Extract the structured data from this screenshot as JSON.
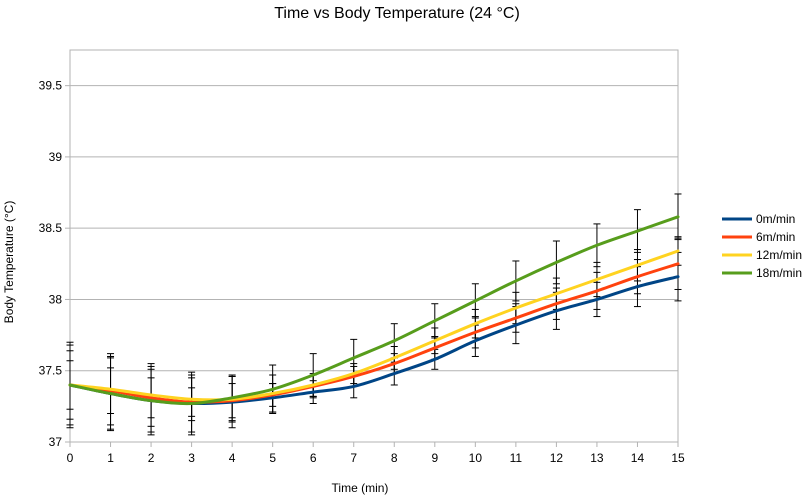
{
  "chart_data": {
    "type": "line",
    "title": "Time vs Body Temperature (24 °C)",
    "xlabel": "Time (min)",
    "ylabel": "Body Temperature (°C)",
    "x": [
      0,
      1,
      2,
      3,
      4,
      5,
      6,
      7,
      8,
      9,
      10,
      11,
      12,
      13,
      14,
      15
    ],
    "xlim": [
      0,
      15
    ],
    "ylim": [
      37,
      39.75
    ],
    "y_ticks": [
      37,
      37.5,
      38,
      38.5,
      39,
      39.5
    ],
    "y_tick_labels": [
      "37",
      "37.5",
      "38",
      "38.5",
      "39",
      "39.5"
    ],
    "x_tick_labels": [
      "0",
      "1",
      "2",
      "3",
      "4",
      "5",
      "6",
      "7",
      "8",
      "9",
      "10",
      "11",
      "12",
      "13",
      "14",
      "15"
    ],
    "grid": "horizontal",
    "legend_position": "right",
    "error_bars": true,
    "series": [
      {
        "name": "0m/min",
        "color": "#004586",
        "values": [
          37.4,
          37.34,
          37.29,
          37.27,
          37.28,
          37.31,
          37.35,
          37.39,
          37.48,
          37.58,
          37.71,
          37.82,
          37.92,
          38.0,
          38.09,
          38.16
        ],
        "errors": [
          0.3,
          0.25,
          0.24,
          0.22,
          0.18,
          0.1,
          0.08,
          0.08,
          0.08,
          0.07,
          0.11,
          0.13,
          0.13,
          0.12,
          0.14,
          0.17
        ]
      },
      {
        "name": "6m/min",
        "color": "#ff420e",
        "values": [
          37.4,
          37.36,
          37.31,
          37.28,
          37.29,
          37.33,
          37.39,
          37.46,
          37.55,
          37.66,
          37.77,
          37.87,
          37.97,
          38.06,
          38.16,
          38.25
        ],
        "errors": [
          0.17,
          0.16,
          0.14,
          0.1,
          0.12,
          0.08,
          0.08,
          0.07,
          0.07,
          0.08,
          0.11,
          0.1,
          0.11,
          0.13,
          0.12,
          0.18
        ]
      },
      {
        "name": "12m/min",
        "color": "#ffd320",
        "values": [
          37.4,
          37.37,
          37.33,
          37.3,
          37.3,
          37.34,
          37.4,
          37.48,
          37.59,
          37.71,
          37.83,
          37.94,
          38.04,
          38.14,
          38.24,
          38.34
        ],
        "errors": [
          0.28,
          0.25,
          0.22,
          0.15,
          0.16,
          0.13,
          0.08,
          0.07,
          0.08,
          0.09,
          0.1,
          0.11,
          0.11,
          0.12,
          0.11,
          0.1
        ]
      },
      {
        "name": "18m/min",
        "color": "#579d1c",
        "values": [
          37.4,
          37.34,
          37.29,
          37.27,
          37.31,
          37.37,
          37.47,
          37.59,
          37.71,
          37.85,
          37.99,
          38.13,
          38.26,
          38.38,
          38.48,
          38.58
        ],
        "errors": [
          0.24,
          0.26,
          0.22,
          0.2,
          0.16,
          0.17,
          0.15,
          0.13,
          0.12,
          0.12,
          0.12,
          0.14,
          0.15,
          0.15,
          0.15,
          0.16
        ]
      }
    ]
  }
}
